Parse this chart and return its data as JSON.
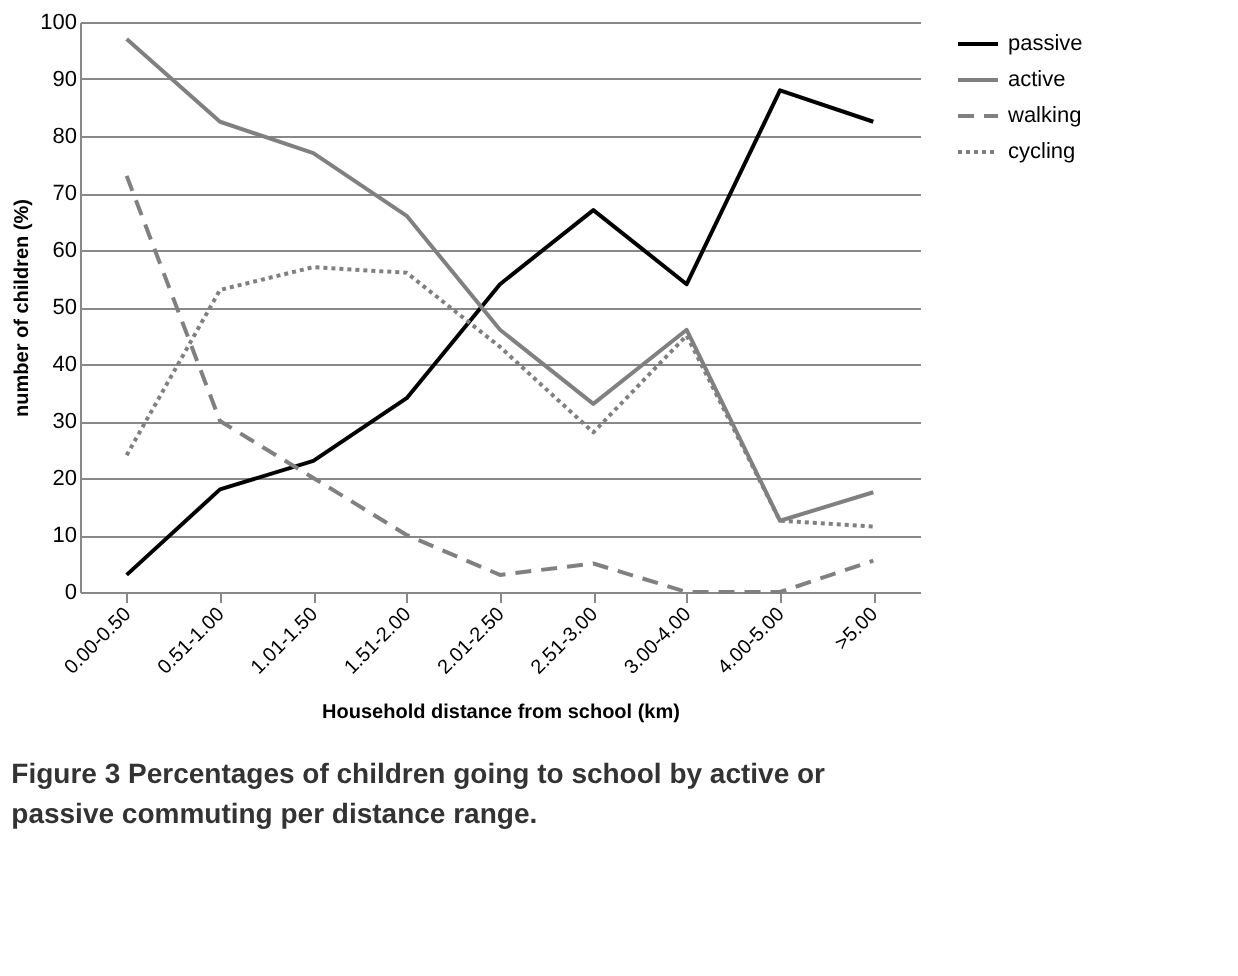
{
  "chart_data": {
    "type": "line",
    "title": "Figure 3 Percentages of children going to school by active or passive commuting per distance range.",
    "xlabel": "Household distance from school (km)",
    "ylabel": "number of children (%)",
    "categories": [
      "0.00-0.50",
      "0.51-1.00",
      "1.01-1.50",
      "1.51-2.00",
      "2.01-2.50",
      "2.51-3.00",
      "3.00-4.00",
      "4.00-5.00",
      ">5.00"
    ],
    "series": [
      {
        "name": "passive",
        "color": "#000000",
        "line_style": "solid",
        "values": [
          3,
          18,
          23,
          34,
          54,
          67,
          54,
          88,
          82.5
        ]
      },
      {
        "name": "active",
        "color": "#808080",
        "line_style": "solid",
        "values": [
          97,
          82.5,
          77,
          66,
          46,
          33,
          46,
          12.5,
          17.5
        ]
      },
      {
        "name": "walking",
        "color": "#808080",
        "line_style": "dashed",
        "values": [
          73,
          30,
          20,
          10,
          3,
          5,
          0,
          0,
          5.5
        ]
      },
      {
        "name": "cycling",
        "color": "#808080",
        "line_style": "dotted",
        "values": [
          24,
          53,
          57,
          56,
          43,
          28,
          45,
          12.5,
          11.5
        ]
      }
    ],
    "ylim": [
      0,
      100
    ],
    "yticks": [
      0,
      10,
      20,
      30,
      40,
      50,
      60,
      70,
      80,
      90,
      100
    ],
    "grid": "y",
    "legend": "right",
    "marker": "none"
  }
}
